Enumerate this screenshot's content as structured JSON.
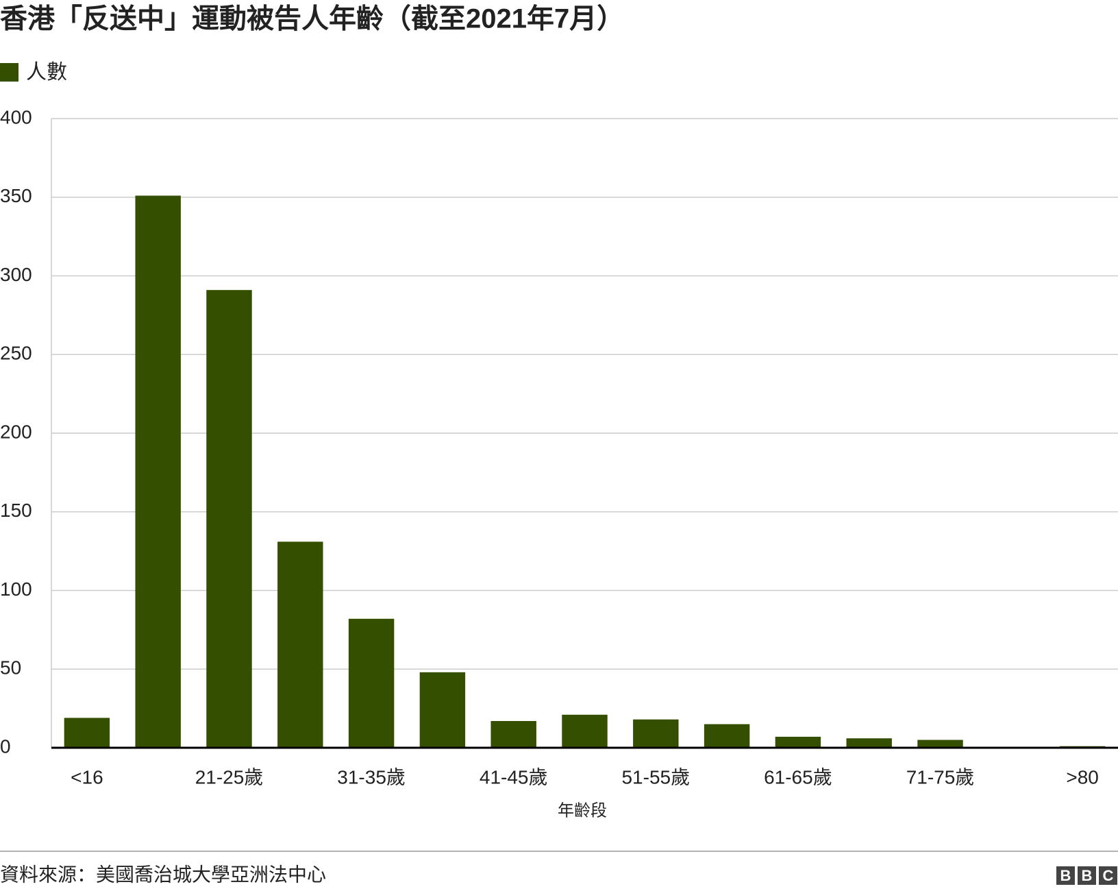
{
  "chart_data": {
    "type": "bar",
    "title": "香港「反送中」運動被告人年齡（截至2021年7月）",
    "x_label": "年齡段",
    "source": "資料來源：美國喬治城大學亞洲法中心",
    "logo": [
      "B",
      "B",
      "C"
    ],
    "categories": [
      "<16",
      null,
      "21-25歲",
      null,
      "31-35歲",
      null,
      "41-45歲",
      null,
      "51-55歲",
      null,
      "61-65歲",
      null,
      "71-75歲",
      null,
      ">80"
    ],
    "series": [
      {
        "name": "人數",
        "color": "#354f00",
        "values": [
          19,
          351,
          291,
          131,
          82,
          48,
          17,
          21,
          18,
          15,
          7,
          6,
          5,
          0,
          1
        ]
      }
    ],
    "ylim": [
      0,
      400
    ],
    "yticks": [
      0,
      50,
      100,
      150,
      200,
      250,
      300,
      350,
      400
    ],
    "grid": true
  }
}
